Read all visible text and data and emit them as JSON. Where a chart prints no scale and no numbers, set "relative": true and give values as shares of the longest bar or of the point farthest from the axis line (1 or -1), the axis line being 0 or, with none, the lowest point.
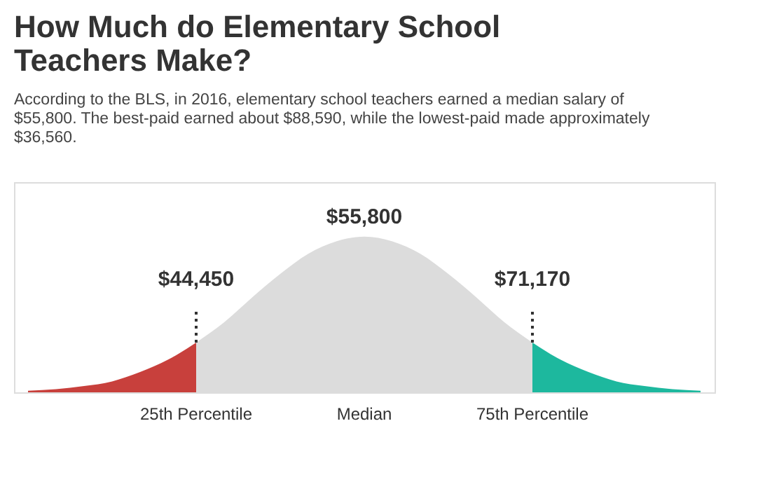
{
  "chart_data": {
    "type": "area",
    "relative": true,
    "title": "How Much do Elementary School Teachers Make?",
    "subtitle": "According to the BLS, in 2016, elementary school teachers earned a median salary of $55,800. The best-paid earned about $88,590, while the lowest-paid made approximately $36,560.",
    "categories": [
      null,
      null,
      null,
      null,
      null,
      null,
      "25th Percentile",
      null,
      null,
      null,
      null,
      null,
      "Median",
      null,
      null,
      null,
      null,
      null,
      "75th Percentile",
      null,
      null,
      null,
      null,
      null,
      null
    ],
    "series": [
      {
        "color": "#c8403c",
        "values": [
          0.01,
          0.02,
          0.04,
          0.07,
          0.13,
          0.21,
          0.32,
          null,
          null,
          null,
          null,
          null,
          null,
          null,
          null,
          null,
          null,
          null,
          null,
          null,
          null,
          null,
          null,
          null,
          null
        ]
      },
      {
        "color": "#dcdcdc",
        "values": [
          null,
          null,
          null,
          null,
          null,
          null,
          0.32,
          0.45,
          0.61,
          0.76,
          0.89,
          0.97,
          1,
          0.97,
          0.89,
          0.76,
          0.61,
          0.45,
          0.32,
          null,
          null,
          null,
          null,
          null,
          null
        ]
      },
      {
        "color": "#1db89e",
        "values": [
          null,
          null,
          null,
          null,
          null,
          null,
          null,
          null,
          null,
          null,
          null,
          null,
          null,
          null,
          null,
          null,
          null,
          null,
          0.32,
          0.21,
          0.13,
          0.07,
          0.04,
          0.02,
          0.01
        ]
      }
    ],
    "annotations": [
      {
        "text": "$44,450",
        "x": "25th Percentile",
        "y": 0.32
      },
      {
        "text": "$55,800",
        "x": "Median",
        "y": 1
      },
      {
        "text": "$71,170",
        "x": "75th Percentile",
        "y": 0.32
      }
    ],
    "grid": false
  }
}
